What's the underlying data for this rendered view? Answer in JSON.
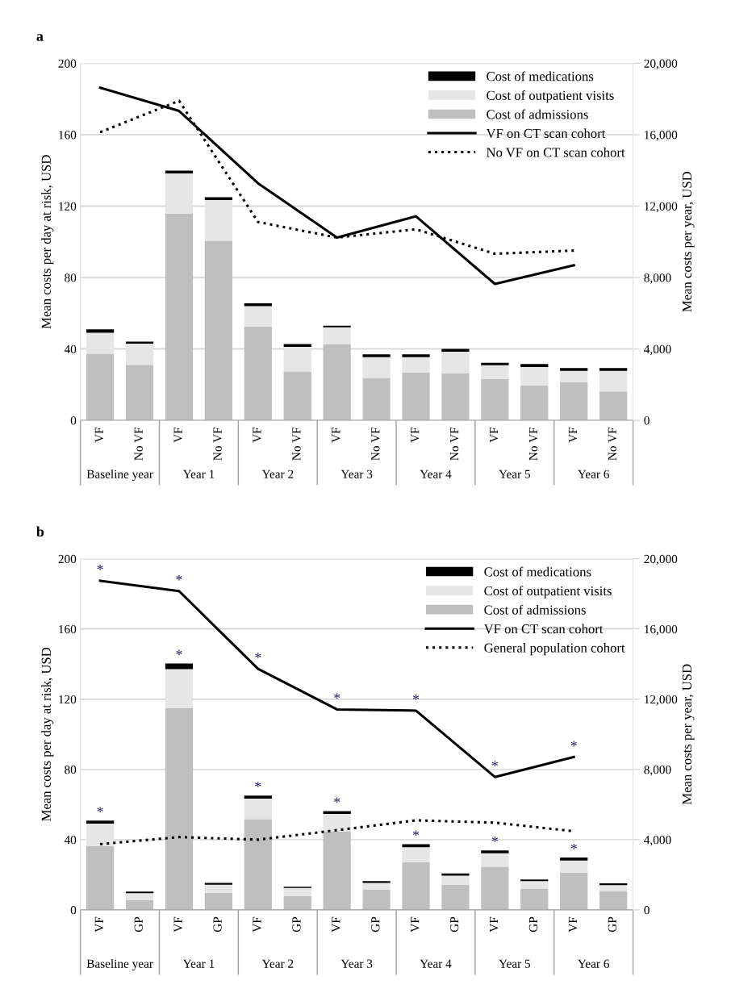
{
  "chart_data": [
    {
      "type": "bar",
      "title": "a",
      "ylabel": "Mean costs per day at risk, USD",
      "y2label": "Mean costs per year, USD",
      "categories": [
        "VF",
        "No VF",
        "VF",
        "No VF",
        "VF",
        "No VF",
        "VF",
        "No VF",
        "VF",
        "No VF",
        "VF",
        "No VF",
        "VF",
        "No VF"
      ],
      "stacked": true,
      "grid": "y",
      "legend": "top right",
      "ylim": [
        0,
        200
      ],
      "yticks": [
        0,
        40,
        80,
        120,
        160,
        200
      ],
      "y2lim": [
        0,
        20000
      ],
      "y2ticks": [
        {
          "value": 0,
          "label": "0"
        },
        {
          "value": 4000,
          "label": "4,000"
        },
        {
          "value": 8000,
          "label": "8,000"
        },
        {
          "value": 12000,
          "label": "12,000"
        },
        {
          "value": 16000,
          "label": "16,000"
        },
        {
          "value": 20000,
          "label": "20,000"
        }
      ],
      "series": [
        {
          "name": "Cost of admissions",
          "color": "#bfbfbf",
          "values": [
            37.3,
            31.1,
            115.7,
            100.6,
            52.6,
            27.4,
            42.7,
            23.8,
            26.7,
            26.3,
            23.1,
            19.4,
            21.3,
            16.2
          ]
        },
        {
          "name": "Cost of outpatient visits",
          "color": "#e6e6e6",
          "values": [
            11.8,
            11.9,
            22.6,
            22.8,
            11.4,
            13.7,
            9.4,
            11.6,
            8.7,
            12.1,
            7.8,
            10.5,
            6.4,
            11.5
          ]
        },
        {
          "name": "Cost of medications",
          "color": "#000000",
          "values": [
            1.9,
            1.1,
            1.6,
            1.6,
            1.6,
            1.6,
            0.9,
            1.6,
            1.6,
            1.6,
            1.3,
            1.6,
            1.6,
            1.6
          ]
        },
        {
          "name": "VF on CT scan cohort",
          "type": "line",
          "axis": "y2",
          "color": "#000000",
          "line_style": "solid",
          "values": [
            18630,
            null,
            17330,
            null,
            13280,
            null,
            10240,
            null,
            11430,
            null,
            7640,
            null,
            8690,
            null
          ]
        },
        {
          "name": "No VF on CT scan cohort",
          "type": "line",
          "axis": "y2",
          "color": "#000000",
          "line_style": "dotted",
          "values": [
            16140,
            null,
            17900,
            null,
            11110,
            null,
            10240,
            null,
            10700,
            null,
            9330,
            null,
            9510,
            null
          ]
        }
      ],
      "annotations": [
        "Baseline year",
        "Year 1",
        "Year 2",
        "Year 3",
        "Year 4",
        "Year 5",
        "Year 6"
      ]
    },
    {
      "type": "bar",
      "title": "b",
      "ylabel": "Mean costs per day at risk, USD",
      "y2label": "Mean costs per year, USD",
      "categories": [
        "VF",
        "GP",
        "VF",
        "GP",
        "VF",
        "GP",
        "VF",
        "GP",
        "VF",
        "GP",
        "VF",
        "GP",
        "VF",
        "GP"
      ],
      "stacked": true,
      "grid": "y",
      "legend": "top right",
      "ylim": [
        0,
        200
      ],
      "yticks": [
        0,
        40,
        80,
        120,
        160,
        200
      ],
      "y2lim": [
        0,
        20000
      ],
      "y2ticks": [
        {
          "value": 0,
          "label": "0"
        },
        {
          "value": 4000,
          "label": "4,000"
        },
        {
          "value": 8000,
          "label": "8,000"
        },
        {
          "value": 12000,
          "label": "12,000"
        },
        {
          "value": 16000,
          "label": "16,000"
        },
        {
          "value": 20000,
          "label": "20,000"
        }
      ],
      "series": [
        {
          "name": "Cost of admissions",
          "color": "#bfbfbf",
          "values": [
            36.3,
            5.6,
            115.0,
            9.7,
            51.7,
            7.8,
            44.8,
            11.5,
            27.2,
            14.3,
            24.6,
            12.1,
            21.2,
            10.8
          ]
        },
        {
          "name": "Cost of outpatient visits",
          "color": "#e6e6e6",
          "values": [
            12.8,
            3.9,
            22.1,
            4.6,
            11.7,
            4.7,
            9.9,
            3.9,
            8.5,
            5.2,
            7.6,
            4.3,
            6.9,
            3.3
          ]
        },
        {
          "name": "Cost of medications",
          "color": "#000000",
          "values": [
            1.7,
            0.9,
            3.2,
            1.1,
            1.7,
            0.7,
            1.5,
            1.0,
            1.7,
            1.3,
            1.7,
            0.9,
            1.7,
            1.0
          ]
        },
        {
          "name": "VF on CT scan cohort",
          "type": "line",
          "axis": "y2",
          "color": "#000000",
          "line_style": "solid",
          "values": [
            18750,
            null,
            18160,
            null,
            13730,
            null,
            11420,
            null,
            11350,
            null,
            7570,
            null,
            8710,
            null
          ]
        },
        {
          "name": "General population cohort",
          "type": "line",
          "axis": "y2",
          "color": "#000000",
          "line_style": "dotted",
          "values": [
            3740,
            null,
            4150,
            null,
            4000,
            null,
            4540,
            null,
            5100,
            null,
            4970,
            null,
            4480,
            null
          ]
        }
      ],
      "annotations": [
        "Baseline year",
        "Year 1",
        "Year 2",
        "Year 3",
        "Year 4",
        "Year 5",
        "Year 6",
        "*",
        "*",
        "*",
        "*",
        "*",
        "*",
        "*",
        "*",
        "*",
        "*",
        "*",
        "*",
        "*",
        "*"
      ]
    }
  ]
}
